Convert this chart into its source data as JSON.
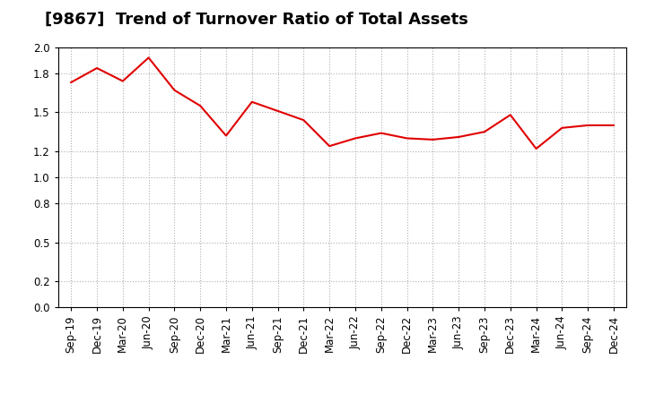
{
  "title": "[9867]  Trend of Turnover Ratio of Total Assets",
  "line_color": "#e00000",
  "background_color": "#ffffff",
  "grid_color": "#b0b0b0",
  "ylim": [
    0.0,
    2.0
  ],
  "yticks": [
    0.0,
    0.2,
    0.5,
    0.8,
    1.0,
    1.2,
    1.5,
    1.8,
    2.0
  ],
  "labels": [
    "Sep-19",
    "Dec-19",
    "Mar-20",
    "Jun-20",
    "Sep-20",
    "Dec-20",
    "Mar-21",
    "Jun-21",
    "Sep-21",
    "Dec-21",
    "Mar-22",
    "Jun-22",
    "Sep-22",
    "Dec-22",
    "Mar-23",
    "Jun-23",
    "Sep-23",
    "Dec-23",
    "Mar-24",
    "Jun-24",
    "Sep-24",
    "Dec-24"
  ],
  "values": [
    1.73,
    1.84,
    1.74,
    1.92,
    1.67,
    1.55,
    1.32,
    1.58,
    1.51,
    1.44,
    1.24,
    1.3,
    1.34,
    1.3,
    1.29,
    1.31,
    1.35,
    1.48,
    1.22,
    1.38,
    1.4,
    1.4
  ],
  "title_fontsize": 13,
  "figsize": [
    7.2,
    4.4
  ],
  "dpi": 100
}
